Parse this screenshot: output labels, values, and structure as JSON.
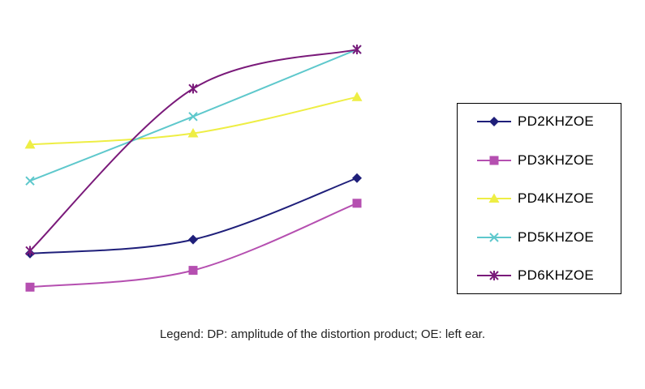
{
  "chart_data": {
    "type": "line",
    "categories": [
      "",
      "",
      ""
    ],
    "ylim": [
      0,
      100
    ],
    "grid": false,
    "legend_position": "right",
    "series": [
      {
        "name": "PD2KHZOE",
        "values": [
          18,
          23,
          45
        ],
        "color": "#1f1f7a",
        "marker": "diamond"
      },
      {
        "name": "PD3KHZOE",
        "values": [
          6,
          12,
          36
        ],
        "color": "#b54fb0",
        "marker": "square"
      },
      {
        "name": "PD4KHZOE",
        "values": [
          57,
          61,
          74
        ],
        "color": "#eeee44",
        "marker": "triangle"
      },
      {
        "name": "PD5KHZOE",
        "values": [
          44,
          67,
          91
        ],
        "color": "#5ec8cc",
        "marker": "x"
      },
      {
        "name": "PD6KHZOE",
        "values": [
          19,
          77,
          91
        ],
        "color": "#7a1a7a",
        "marker": "star"
      }
    ]
  },
  "caption": "Legend: DP: amplitude of the distortion product; OE: left ear."
}
